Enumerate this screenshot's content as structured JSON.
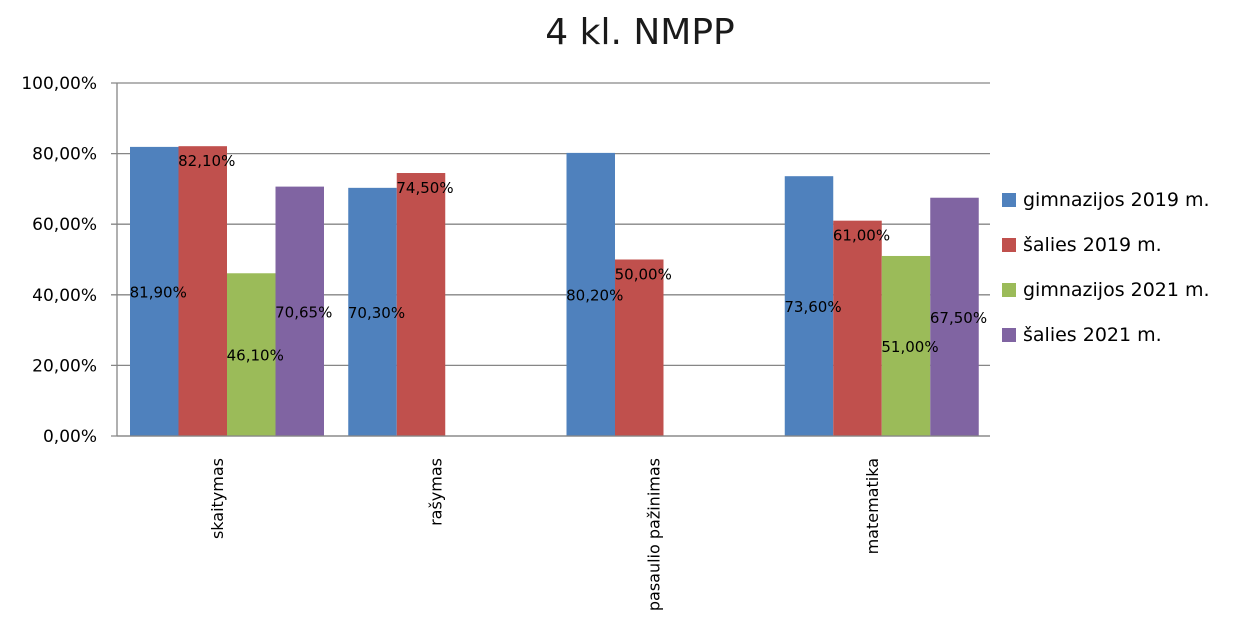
{
  "chart_data": {
    "type": "bar",
    "title": "4 kl. NMPP",
    "categories": [
      "skaitymas",
      "rašymas",
      "pasaulio pažinimas",
      "matematika"
    ],
    "ylim": [
      0,
      100
    ],
    "yticks": [
      0,
      20,
      40,
      60,
      80,
      100
    ],
    "ytick_labels": [
      "0,00%",
      "20,00%",
      "40,00%",
      "60,00%",
      "80,00%",
      "100,00%"
    ],
    "grid": true,
    "legend_position": "right",
    "series": [
      {
        "name": "gimnazijos 2019 m.",
        "color": "#4f81bd",
        "values": [
          81.9,
          70.3,
          80.2,
          73.6
        ],
        "labels": [
          "81,90%",
          "70,30%",
          "80,20%",
          "73,60%"
        ]
      },
      {
        "name": "šalies 2019 m.",
        "color": "#c0504d",
        "values": [
          82.1,
          74.5,
          50.0,
          61.0
        ],
        "labels": [
          "82,10%",
          "74,50%",
          "50,00%",
          "61,00%"
        ]
      },
      {
        "name": "gimnazijos 2021 m.",
        "color": "#9bbb59",
        "values": [
          46.1,
          null,
          null,
          51.0
        ],
        "labels": [
          "46,10%",
          null,
          null,
          "51,00%"
        ]
      },
      {
        "name": "šalies 2021 m.",
        "color": "#8064a2",
        "values": [
          70.65,
          null,
          null,
          67.5
        ],
        "labels": [
          "70,65%",
          null,
          null,
          "67,50%"
        ]
      }
    ]
  }
}
